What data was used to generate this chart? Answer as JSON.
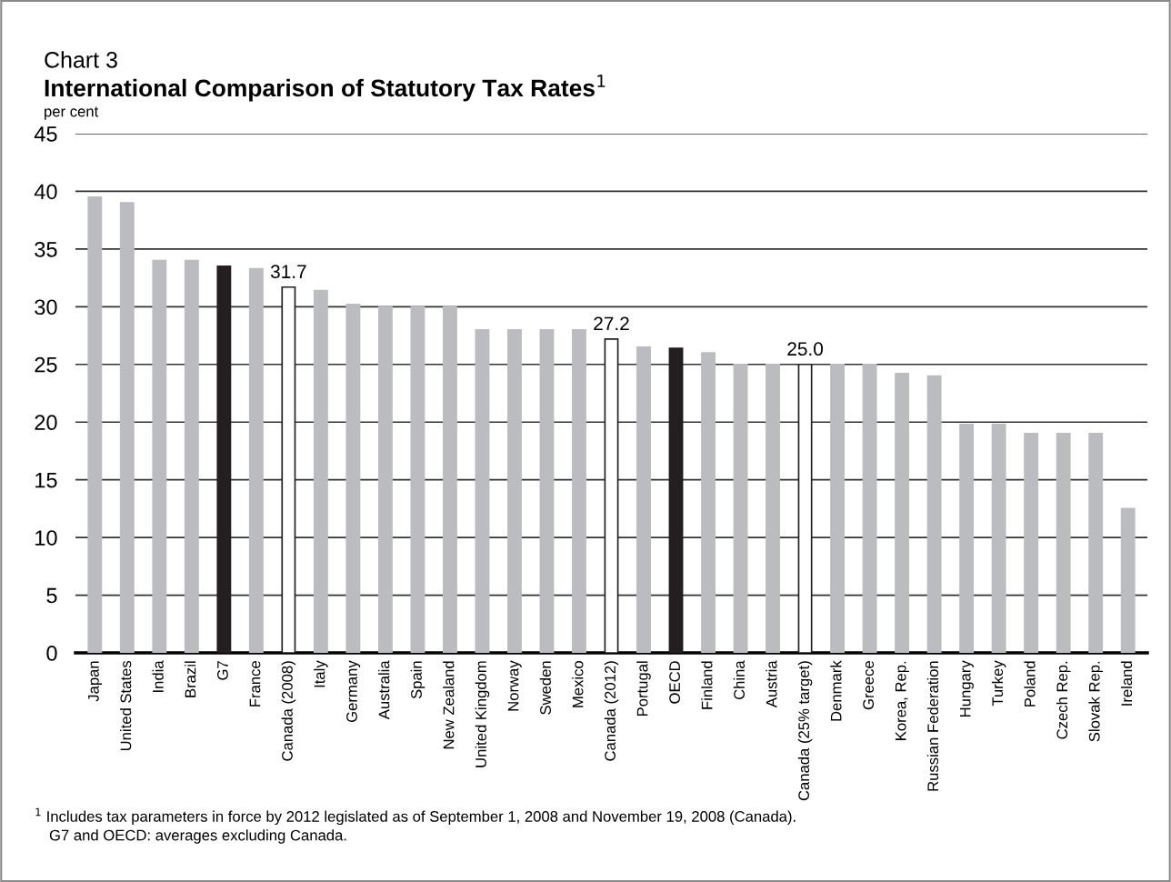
{
  "chart_data": {
    "type": "bar",
    "subtitle": "Chart 3",
    "title": "International Comparison of Statutory Tax Rates$^{1}$",
    "ylabel": "per cent",
    "categories": [
      "Japan",
      "United States",
      "India",
      "Brazil",
      "G7",
      "France",
      "Canada (2008)",
      "Italy",
      "Germany",
      "Australia",
      "Spain",
      "New Zealand",
      "United Kingdom",
      "Norway",
      "Sweden",
      "Mexico",
      "Canada (2012)",
      "Portugal",
      "OECD",
      "Finland",
      "China",
      "Austria",
      "Canada (25% target)",
      "Denmark",
      "Greece",
      "Korea, Rep.",
      "Russian Federation",
      "Hungary",
      "Turkey",
      "Poland",
      "Czech Rep.",
      "Slovak Rep.",
      "Ireland"
    ],
    "values": [
      39.5,
      39.0,
      34.0,
      34.0,
      33.5,
      33.3,
      31.7,
      31.4,
      30.2,
      30.0,
      30.0,
      30.0,
      28.0,
      28.0,
      28.0,
      28.0,
      27.2,
      26.5,
      26.4,
      26.0,
      25.0,
      25.0,
      25.0,
      25.0,
      25.0,
      24.2,
      24.0,
      19.8,
      19.8,
      19.0,
      19.0,
      19.0,
      12.5
    ],
    "colors": [
      "#bbbcc0",
      "#bbbcc0",
      "#bbbcc0",
      "#bbbcc0",
      "#231f20",
      "#bbbcc0",
      "#ffffff",
      "#bbbcc0",
      "#bbbcc0",
      "#bbbcc0",
      "#bbbcc0",
      "#bbbcc0",
      "#bbbcc0",
      "#bbbcc0",
      "#bbbcc0",
      "#bbbcc0",
      "#ffffff",
      "#bbbcc0",
      "#231f20",
      "#bbbcc0",
      "#bbbcc0",
      "#bbbcc0",
      "#ffffff",
      "#bbbcc0",
      "#bbbcc0",
      "#bbbcc0",
      "#bbbcc0",
      "#bbbcc0",
      "#bbbcc0",
      "#bbbcc0",
      "#bbbcc0",
      "#bbbcc0",
      "#bbbcc0"
    ],
    "value_labels": [
      null,
      null,
      null,
      null,
      null,
      null,
      "31.7",
      null,
      null,
      null,
      null,
      null,
      null,
      null,
      null,
      null,
      "27.2",
      null,
      null,
      null,
      null,
      null,
      "25.0",
      null,
      null,
      null,
      null,
      null,
      null,
      null,
      null,
      null,
      null
    ],
    "ylim": [
      0,
      45
    ],
    "yticks": [
      0,
      5,
      10,
      15,
      20,
      25,
      30,
      35,
      40,
      45
    ],
    "grid": "y",
    "annotations": [
      "$^{1}$ Includes tax parameters in force by 2012 legislated as of September 1, 2008 and November 19, 2008 (Canada).",
      "G7 and OECD: averages excluding Canada."
    ]
  }
}
